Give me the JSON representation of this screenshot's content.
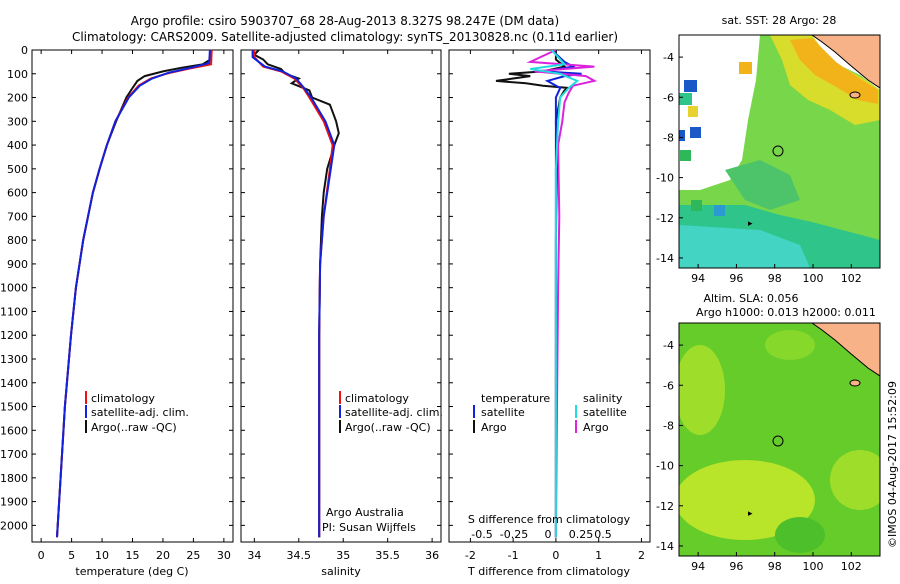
{
  "title_line1": "Argo profile: csiro 5903707_68 28-Aug-2013 8.327S 98.247E (DM data)",
  "title_line2": "Climatology: CARS2009. Satellite-adjusted climatology: synTS_20130828.nc (0.11d earlier)",
  "colors": {
    "climatology": "#ee1111",
    "satellite": "#1122dd",
    "argo": "#111111",
    "sat_salinity": "#22dddd",
    "argo_salinity": "#dd22dd",
    "land": "#f7b287"
  },
  "legend_temp": [
    "climatology",
    "satellite-adj. clim.",
    "Argo(..raw -QC)"
  ],
  "legend_sal": [
    "climatology",
    "satellite-adj. clim.",
    "Argo(..raw -QC)"
  ],
  "legend_diff": {
    "head_t": "temperature",
    "head_s": "salinity",
    "t1": "satellite",
    "t2": "Argo",
    "s1": "satellite",
    "s2": "Argo"
  },
  "credit1": "Argo Australia",
  "credit2": "PI: Susan Wijffels",
  "map1_title": "sat. SST: 28 Argo: 28",
  "map2_title1": "Altim. SLA: 0.056",
  "map2_title2": "Argo h1000: 0.013 h2000: 0.011",
  "footer": "©IMOS 04-Aug-2017 15:52:09",
  "chart_data": [
    {
      "type": "line",
      "xlabel": "temperature (deg C)",
      "ylabel": "",
      "xlim": [
        -1.5,
        31.5
      ],
      "ylim": [
        2070,
        0
      ],
      "xticks": [
        0,
        5,
        10,
        15,
        20,
        25,
        30
      ],
      "yticks": [
        0,
        100,
        200,
        300,
        400,
        500,
        600,
        700,
        800,
        900,
        1000,
        1100,
        1200,
        1300,
        1400,
        1500,
        1600,
        1700,
        1800,
        1900,
        2000
      ],
      "series": [
        {
          "name": "climatology",
          "depth": [
            0,
            60,
            80,
            100,
            120,
            150,
            200,
            300,
            400,
            500,
            600,
            800,
            1000,
            1200,
            1500,
            1800,
            2050
          ],
          "values": [
            28.0,
            27.9,
            24.0,
            20.5,
            18.0,
            16.0,
            14.3,
            12.2,
            10.8,
            9.6,
            8.5,
            6.9,
            5.7,
            4.9,
            3.9,
            3.2,
            2.6
          ]
        },
        {
          "name": "satellite-adj. clim.",
          "depth": [
            0,
            55,
            75,
            95,
            120,
            150,
            200,
            300,
            400,
            500,
            600,
            800,
            1000,
            1200,
            1500,
            1800,
            2050
          ],
          "values": [
            27.7,
            27.6,
            24.5,
            21.0,
            18.2,
            16.2,
            14.4,
            12.2,
            10.8,
            9.6,
            8.5,
            6.9,
            5.7,
            4.9,
            3.9,
            3.2,
            2.6
          ]
        },
        {
          "name": "Argo(..raw -QC)",
          "depth": [
            0,
            40,
            60,
            75,
            90,
            110,
            130,
            160,
            200,
            300,
            400,
            500,
            600,
            800,
            1000,
            1200,
            1500,
            1800,
            2050
          ],
          "values": [
            28.0,
            27.8,
            26.5,
            23.0,
            20.0,
            17.0,
            15.8,
            15.0,
            14.0,
            12.3,
            10.8,
            9.6,
            8.5,
            6.9,
            5.7,
            4.9,
            3.9,
            3.2,
            2.6
          ]
        }
      ]
    },
    {
      "type": "line",
      "xlabel": "salinity",
      "ylabel": "",
      "xlim": [
        33.85,
        36.1
      ],
      "ylim": [
        2070,
        0
      ],
      "xticks": [
        34,
        34.5,
        35,
        35.5,
        36
      ],
      "series": [
        {
          "name": "climatology",
          "depth": [
            0,
            30,
            50,
            70,
            90,
            120,
            160,
            200,
            300,
            400,
            500,
            700,
            900,
            1200,
            1500,
            2050
          ],
          "values": [
            34.0,
            34.0,
            34.05,
            34.1,
            34.3,
            34.45,
            34.55,
            34.62,
            34.78,
            34.88,
            34.85,
            34.78,
            34.74,
            34.73,
            34.73,
            34.73
          ]
        },
        {
          "name": "satellite-adj. clim.",
          "depth": [
            0,
            30,
            50,
            70,
            90,
            120,
            160,
            200,
            300,
            400,
            500,
            700,
            900,
            1200,
            1500,
            2050
          ],
          "values": [
            33.98,
            33.98,
            34.05,
            34.12,
            34.32,
            34.47,
            34.56,
            34.64,
            34.8,
            34.9,
            34.86,
            34.78,
            34.74,
            34.73,
            34.73,
            34.73
          ]
        },
        {
          "name": "Argo(..raw -QC)",
          "depth": [
            0,
            20,
            40,
            60,
            80,
            100,
            120,
            140,
            170,
            200,
            230,
            260,
            300,
            350,
            400,
            450,
            500,
            600,
            700,
            900,
            1200,
            1500,
            2050
          ],
          "values": [
            34.05,
            34.0,
            34.1,
            34.15,
            34.3,
            34.35,
            34.5,
            34.42,
            34.62,
            34.65,
            34.85,
            34.88,
            34.92,
            34.95,
            34.9,
            34.86,
            34.82,
            34.78,
            34.76,
            34.74,
            34.73,
            34.73,
            34.73
          ]
        }
      ]
    },
    {
      "type": "line",
      "xlabel": "T difference from climatology",
      "x2label": "S difference from climatology",
      "xlim": [
        -2.5,
        2.2
      ],
      "ylim": [
        2070,
        0
      ],
      "xticks": [
        -2,
        -1,
        0,
        1,
        2
      ],
      "x2ticks": [
        "-0.5",
        "-0.25",
        "0",
        "0.25",
        "0.5"
      ],
      "series": [
        {
          "name": "temperature satellite",
          "depth": [
            0,
            50,
            70,
            90,
            100,
            110,
            130,
            160,
            200,
            400,
            2050
          ],
          "values": [
            -0.1,
            0.2,
            0.4,
            -0.3,
            0.6,
            0.2,
            -0.2,
            0.1,
            0.0,
            0.0,
            0.0
          ]
        },
        {
          "name": "temperature Argo",
          "depth": [
            0,
            40,
            70,
            90,
            100,
            110,
            120,
            130,
            140,
            150,
            160,
            170,
            200,
            250,
            300,
            500,
            800,
            1200,
            2050
          ],
          "values": [
            0.0,
            0.0,
            0.2,
            -0.3,
            -1.1,
            -0.6,
            -1.0,
            -1.4,
            -0.7,
            -0.3,
            0.3,
            0.2,
            0.1,
            0.05,
            0.0,
            0.02,
            0.0,
            0.0,
            0.0
          ]
        },
        {
          "name": "salinity satellite",
          "depth": [
            0,
            60,
            80,
            100,
            130,
            160,
            200,
            300,
            500,
            2050
          ],
          "values": [
            -0.1,
            0.2,
            -0.6,
            0.1,
            0.5,
            0.3,
            0.1,
            0.05,
            0.0,
            0.0
          ]
        },
        {
          "name": "salinity Argo",
          "depth": [
            0,
            50,
            70,
            90,
            110,
            130,
            150,
            180,
            220,
            300,
            400,
            700,
            1000,
            1400,
            2050
          ],
          "values": [
            0.0,
            -0.6,
            0.9,
            -0.5,
            0.7,
            0.9,
            0.4,
            0.3,
            0.2,
            0.15,
            0.05,
            0.08,
            0.05,
            0.03,
            0.0
          ]
        }
      ]
    }
  ],
  "map1": {
    "xticks": [
      "94",
      "96",
      "98",
      "100",
      "102"
    ],
    "yticks": [
      "-4",
      "-6",
      "-8",
      "-10",
      "-12",
      "-14"
    ],
    "argo_lon": 98.247,
    "argo_lat": -8.327
  },
  "map2": {
    "xticks": [
      "94",
      "96",
      "98",
      "100",
      "102"
    ],
    "yticks": [
      "-4",
      "-6",
      "-8",
      "-10",
      "-12",
      "-14"
    ],
    "argo_lon": 98.247,
    "argo_lat": -8.327
  }
}
